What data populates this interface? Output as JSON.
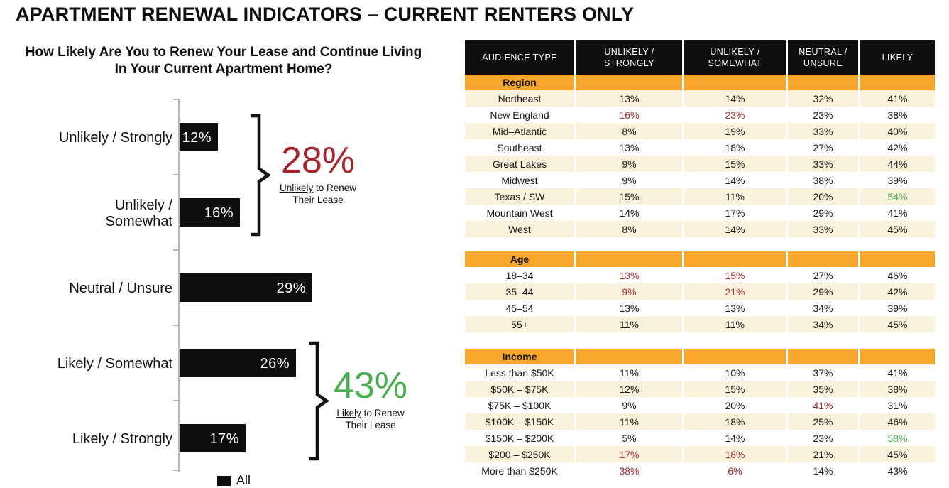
{
  "page": {
    "title": "APARTMENT RENEWAL INDICATORS – CURRENT RENTERS ONLY"
  },
  "chart_data": {
    "type": "bar",
    "orientation": "horizontal",
    "title": "How Likely Are You to Renew Your Lease and Continue Living In Your Current Apartment Home?",
    "categories": [
      "Unlikely / Strongly",
      "Unlikely / Somewhat",
      "Neutral / Unsure",
      "Likely / Somewhat",
      "Likely / Strongly"
    ],
    "categories_wrapped": [
      [
        "Unlikely / Strongly"
      ],
      [
        "Unlikely /",
        "Somewhat"
      ],
      [
        "Neutral / Unsure"
      ],
      [
        "Likely / Somewhat"
      ],
      [
        "Likely / Strongly"
      ]
    ],
    "values": [
      12,
      16,
      29,
      26,
      17
    ],
    "value_labels": [
      "12%",
      "16%",
      "29%",
      "26%",
      "17%"
    ],
    "bar_color": "#0e0e0e",
    "xlim": [
      0,
      32
    ],
    "grid": false,
    "legend": {
      "label": "All",
      "color": "#0e0e0e",
      "position": "bottom"
    },
    "annotations": [
      {
        "total": "28%",
        "color": "#A6242C",
        "word_underlined": "Unlikely",
        "line1_rest": " to Renew",
        "line2": "Their Lease",
        "covers": [
          "Unlikely / Strongly",
          "Unlikely / Somewhat"
        ]
      },
      {
        "total": "43%",
        "color": "#47AD4D",
        "word_underlined": "Likely",
        "line1_rest": " to Renew",
        "line2": "Their Lease",
        "covers": [
          "Likely / Somewhat",
          "Likely / Strongly"
        ]
      }
    ]
  },
  "table": {
    "headers": [
      "AUDIENCE TYPE",
      "UNLIKELY / STRONGLY",
      "UNLIKELY / SOMEWHAT",
      "NEUTRAL / UNSURE",
      "LIKELY"
    ],
    "colors": {
      "header_bg": "#0e0e0e",
      "header_text": "#ffffff",
      "section_bg": "#F9A72B",
      "row_alt_bg": "#FBF2DC",
      "row_bg": "#ffffff",
      "highlight_red": "#A62C33",
      "highlight_green": "#47AD4D"
    },
    "sections": [
      {
        "name": "Region",
        "alt_first": true,
        "rows": [
          {
            "label": "Northeast",
            "values": [
              "13%",
              "14%",
              "32%",
              "41%"
            ],
            "colors": [
              "",
              "",
              "",
              ""
            ]
          },
          {
            "label": "New England",
            "values": [
              "16%",
              "23%",
              "23%",
              "38%"
            ],
            "colors": [
              "r",
              "r",
              "",
              ""
            ]
          },
          {
            "label": "Mid–Atlantic",
            "values": [
              "8%",
              "19%",
              "33%",
              "40%"
            ],
            "colors": [
              "",
              "",
              "",
              ""
            ]
          },
          {
            "label": "Southeast",
            "values": [
              "13%",
              "18%",
              "27%",
              "42%"
            ],
            "colors": [
              "",
              "",
              "",
              ""
            ]
          },
          {
            "label": "Great Lakes",
            "values": [
              "9%",
              "15%",
              "33%",
              "44%"
            ],
            "colors": [
              "",
              "",
              "",
              ""
            ]
          },
          {
            "label": "Midwest",
            "values": [
              "9%",
              "14%",
              "38%",
              "39%"
            ],
            "colors": [
              "",
              "",
              "",
              ""
            ]
          },
          {
            "label": "Texas / SW",
            "values": [
              "15%",
              "11%",
              "20%",
              "54%"
            ],
            "colors": [
              "",
              "",
              "",
              "g"
            ]
          },
          {
            "label": "Mountain West",
            "values": [
              "14%",
              "17%",
              "29%",
              "41%"
            ],
            "colors": [
              "",
              "",
              "",
              ""
            ]
          },
          {
            "label": "West",
            "values": [
              "8%",
              "14%",
              "33%",
              "45%"
            ],
            "colors": [
              "",
              "",
              "",
              ""
            ]
          }
        ]
      },
      {
        "name": "Age",
        "alt_first": false,
        "rows": [
          {
            "label": "18–34",
            "values": [
              "13%",
              "15%",
              "27%",
              "46%"
            ],
            "colors": [
              "r",
              "r",
              "",
              ""
            ]
          },
          {
            "label": "35–44",
            "values": [
              "9%",
              "21%",
              "29%",
              "42%"
            ],
            "colors": [
              "r",
              "r",
              "",
              ""
            ]
          },
          {
            "label": "45–54",
            "values": [
              "13%",
              "13%",
              "34%",
              "39%"
            ],
            "colors": [
              "",
              "",
              "",
              ""
            ]
          },
          {
            "label": "55+",
            "values": [
              "11%",
              "11%",
              "34%",
              "45%"
            ],
            "colors": [
              "",
              "",
              "",
              ""
            ]
          }
        ]
      },
      {
        "name": "Income",
        "alt_first": false,
        "rows": [
          {
            "label": "Less than $50K",
            "values": [
              "11%",
              "10%",
              "37%",
              "41%"
            ],
            "colors": [
              "",
              "",
              "",
              ""
            ]
          },
          {
            "label": "$50K – $75K",
            "values": [
              "12%",
              "15%",
              "35%",
              "38%"
            ],
            "colors": [
              "",
              "",
              "",
              ""
            ]
          },
          {
            "label": "$75K – $100K",
            "values": [
              "9%",
              "20%",
              "41%",
              "31%"
            ],
            "colors": [
              "",
              "",
              "r",
              ""
            ]
          },
          {
            "label": "$100K – $150K",
            "values": [
              "11%",
              "18%",
              "25%",
              "46%"
            ],
            "colors": [
              "",
              "",
              "",
              ""
            ]
          },
          {
            "label": "$150K – $200K",
            "values": [
              "5%",
              "14%",
              "23%",
              "58%"
            ],
            "colors": [
              "",
              "",
              "",
              "g"
            ]
          },
          {
            "label": "$200 – $250K",
            "values": [
              "17%",
              "18%",
              "21%",
              "45%"
            ],
            "colors": [
              "r",
              "r",
              "",
              ""
            ]
          },
          {
            "label": "More than $250K",
            "values": [
              "38%",
              "6%",
              "14%",
              "43%"
            ],
            "colors": [
              "r",
              "r",
              "",
              ""
            ]
          }
        ]
      }
    ]
  }
}
